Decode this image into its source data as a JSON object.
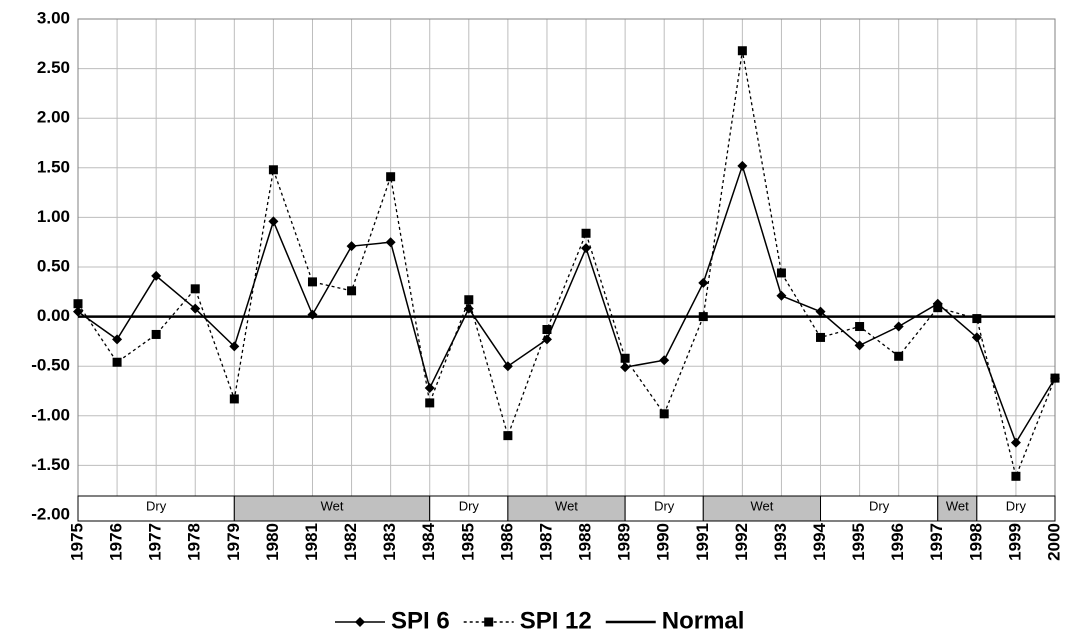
{
  "chart_data": {
    "type": "line",
    "x": [
      1975,
      1976,
      1977,
      1978,
      1979,
      1980,
      1981,
      1982,
      1983,
      1984,
      1985,
      1986,
      1987,
      1988,
      1989,
      1990,
      1991,
      1992,
      1993,
      1994,
      1995,
      1996,
      1997,
      1998,
      1999,
      2000
    ],
    "xlim": [
      1975,
      2000
    ],
    "series": [
      {
        "name": "SPI 6",
        "color": "#000000",
        "marker": "diamond",
        "dashed": false,
        "values": [
          0.05,
          -0.23,
          0.41,
          0.08,
          -0.3,
          0.96,
          0.02,
          0.71,
          0.75,
          -0.72,
          0.08,
          -0.5,
          -0.23,
          0.69,
          -0.51,
          -0.44,
          0.34,
          1.52,
          0.21,
          0.05,
          -0.29,
          -0.1,
          0.13,
          -0.21,
          -1.27,
          -0.62
        ]
      },
      {
        "name": "SPI 12",
        "color": "#000000",
        "marker": "square",
        "dashed": true,
        "values": [
          0.13,
          -0.46,
          -0.18,
          0.28,
          -0.83,
          1.48,
          0.35,
          0.26,
          1.41,
          -0.87,
          0.17,
          -1.2,
          -0.13,
          0.84,
          -0.42,
          -0.98,
          0.0,
          2.68,
          0.44,
          -0.21,
          -0.1,
          -0.4,
          0.09,
          -0.02,
          -1.61,
          -0.62
        ]
      }
    ],
    "reference_line": {
      "name": "Normal",
      "value": 0
    },
    "ylim": [
      -2,
      3
    ],
    "yticks": [
      {
        "value": 3,
        "label": "3.00"
      },
      {
        "value": 2.5,
        "label": "2.50"
      },
      {
        "value": 2,
        "label": "2.00"
      },
      {
        "value": 1.5,
        "label": "1.50"
      },
      {
        "value": 1,
        "label": "1.00"
      },
      {
        "value": 0.5,
        "label": "0.50"
      },
      {
        "value": 0,
        "label": "0.00"
      },
      {
        "value": -0.5,
        "label": "-0.50"
      },
      {
        "value": -1,
        "label": "-1.00"
      },
      {
        "value": -1.5,
        "label": "-1.50"
      },
      {
        "value": -2,
        "label": "-2.00"
      }
    ],
    "grid": true,
    "periods": [
      {
        "label": "Dry",
        "start": 1975,
        "end": 1979
      },
      {
        "label": "Wet",
        "start": 1979,
        "end": 1984
      },
      {
        "label": "Dry",
        "start": 1984,
        "end": 1986
      },
      {
        "label": "Wet",
        "start": 1986,
        "end": 1989
      },
      {
        "label": "Dry",
        "start": 1989,
        "end": 1991
      },
      {
        "label": "Wet",
        "start": 1991,
        "end": 1994
      },
      {
        "label": "Dry",
        "start": 1994,
        "end": 1997
      },
      {
        "label": "Wet",
        "start": 1997,
        "end": 1998
      },
      {
        "label": "Dry",
        "start": 1998,
        "end": 2000
      }
    ]
  }
}
